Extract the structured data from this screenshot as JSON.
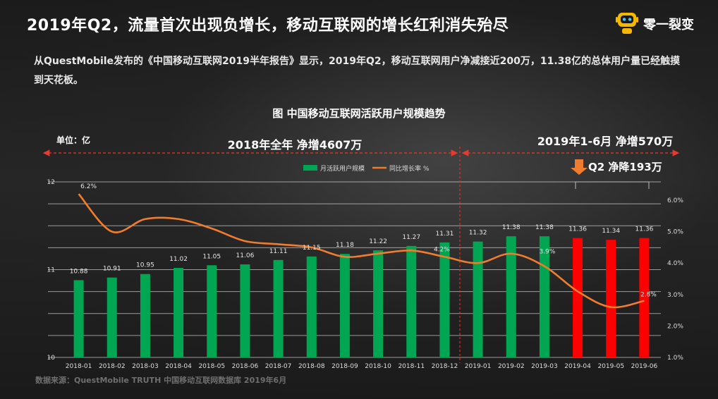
{
  "headline": "2019年Q2，流量首次出现负增长，移动互联网的增长红利消失殆尽",
  "brand": {
    "name": "零一裂变",
    "logo_icon": "robot-icon"
  },
  "intro": "从QuestMobile发布的《中国移动互联网2019半年报告》显示，2019年Q2，移动互联网用户净减接近200万，11.38亿的总体用户量已经触摸到天花板。",
  "chart_title": "图 中国移动互联网活跃用户规模趋势",
  "unit_label": "单位：亿",
  "source": "数据来源：QuestMobile TRUTH 中国移动互联网数据库 2019年6月",
  "annotations": {
    "year_2018": "2018年全年 净增4607万",
    "h1_2019": "2019年1-6月 净增570万",
    "q2_2019": "Q2 净降193万"
  },
  "colors": {
    "growth_bar": "#00a651",
    "decline_bar": "#ff0000",
    "rate_line": "#ef7d2d",
    "arrow": "#ef7d2d"
  },
  "chart_data": {
    "type": "bar",
    "categories": [
      "2018-01",
      "2018-02",
      "2018-03",
      "2018-04",
      "2018-05",
      "2018-06",
      "2018-07",
      "2018-08",
      "2018-09",
      "2018-10",
      "2018-11",
      "2018-12",
      "2019-01",
      "2019-02",
      "2019-03",
      "2019-04",
      "2019-05",
      "2019-06"
    ],
    "ylim": [
      10,
      12
    ],
    "yticks": [
      "10",
      "11",
      "12"
    ],
    "y2lim": [
      1.0,
      6.0
    ],
    "y2ticks": [
      "1.0%",
      "2.0%",
      "3.0%",
      "4.0%",
      "5.0%",
      "6.0%"
    ],
    "grid": true,
    "legend_position": "top-center",
    "series": [
      {
        "name": "月活跃用户规模",
        "type": "bar",
        "values": [
          10.88,
          10.91,
          10.95,
          11.02,
          11.05,
          11.06,
          11.11,
          11.15,
          11.18,
          11.22,
          11.27,
          11.31,
          11.32,
          11.38,
          11.38,
          11.36,
          11.34,
          11.36
        ],
        "labels": [
          "10.88",
          "10.91",
          "10.95",
          "11.02",
          "11.05",
          "11.06",
          "11.11",
          "11.15",
          "11.18",
          "11.22",
          "11.27",
          "11.31",
          "11.32",
          "11.38",
          "11.38",
          "11.36",
          "11.34",
          "11.36"
        ]
      },
      {
        "name": "同比增长率 %",
        "type": "line",
        "values": [
          6.2,
          5.0,
          5.4,
          5.4,
          5.1,
          4.7,
          4.6,
          4.5,
          4.2,
          4.3,
          4.4,
          4.2,
          4.0,
          4.3,
          3.9,
          3.1,
          2.6,
          2.8
        ],
        "point_labels": {
          "0": "6.2%",
          "11": "4.2%",
          "14": "3.9%",
          "17": "2.8%"
        }
      }
    ]
  }
}
